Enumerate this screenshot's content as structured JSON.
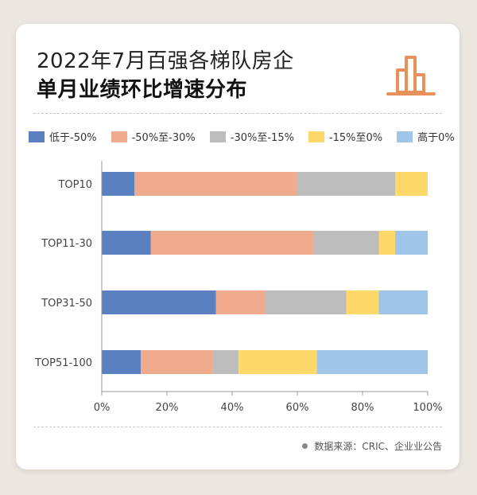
{
  "header": {
    "title_line1": "2022年7月百强各梯队房企",
    "title_line2": "单月业绩环比增速分布"
  },
  "icons": {
    "header_icon": "bar-chart-icon",
    "accent": "#e9915a"
  },
  "footer": {
    "source": "数据来源：CRIC、企业业公告"
  },
  "chart_data": {
    "type": "bar",
    "orientation": "horizontal",
    "stacked": true,
    "categories": [
      "TOP10",
      "TOP11-30",
      "TOP31-50",
      "TOP51-100"
    ],
    "series": [
      {
        "name": "低于-50%",
        "color": "#5b80bf",
        "values": [
          10,
          15,
          35,
          12
        ]
      },
      {
        "name": "-50%至-30%",
        "color": "#f0ab8e",
        "values": [
          50,
          50,
          15,
          22
        ]
      },
      {
        "name": "-30%至-15%",
        "color": "#bdbdbd",
        "values": [
          30,
          20,
          25,
          8
        ]
      },
      {
        "name": "-15%至0%",
        "color": "#fed96a",
        "values": [
          10,
          5,
          10,
          24
        ]
      },
      {
        "name": "高于0%",
        "color": "#9fc5e8",
        "values": [
          0,
          10,
          15,
          34
        ]
      }
    ],
    "xlim": [
      0,
      100
    ],
    "xticks": [
      "0%",
      "20%",
      "40%",
      "60%",
      "80%",
      "100%"
    ],
    "legend_position": "top",
    "grid": false
  }
}
